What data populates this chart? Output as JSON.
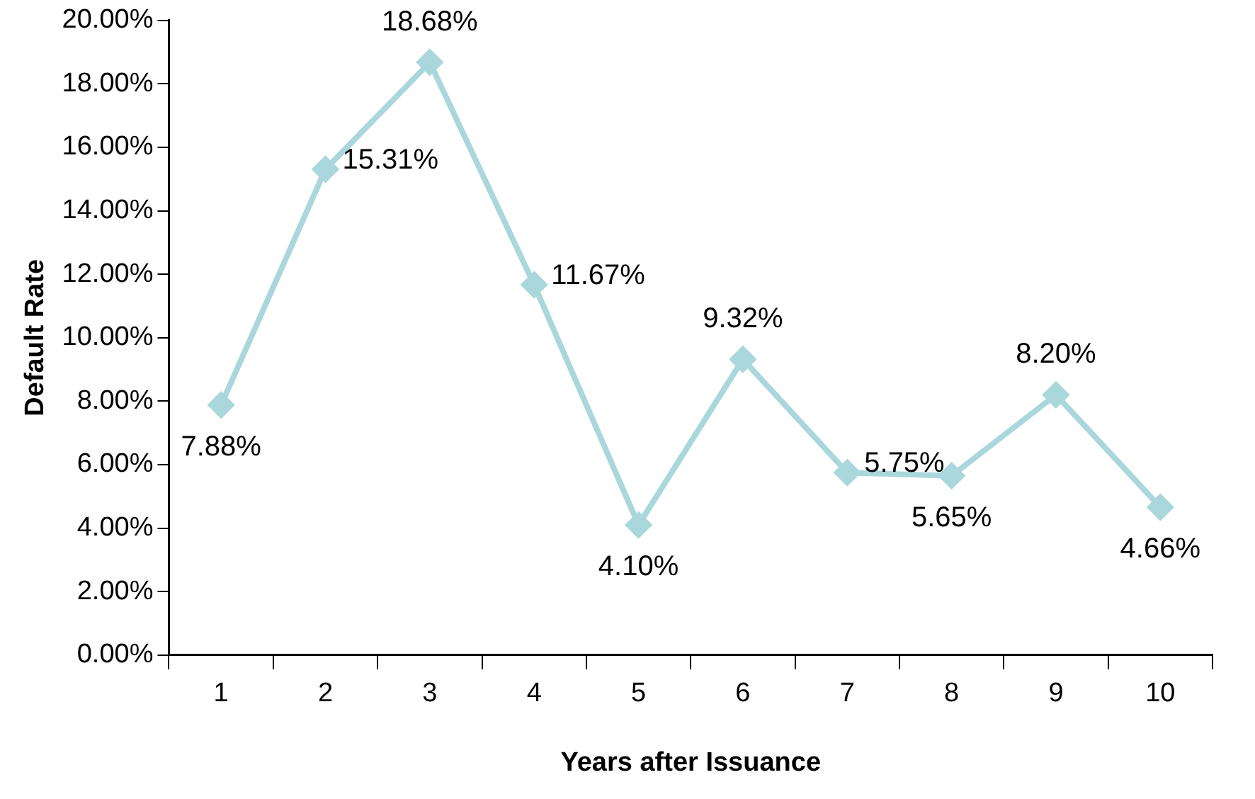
{
  "chart_data": {
    "type": "line",
    "xlabel": "Years after Issuance",
    "ylabel": "Default Rate",
    "categories": [
      "1",
      "2",
      "3",
      "4",
      "5",
      "6",
      "7",
      "8",
      "9",
      "10"
    ],
    "series": [
      {
        "color": "#a9d7db",
        "values": [
          7.88,
          15.31,
          18.68,
          11.67,
          4.1,
          9.32,
          5.75,
          5.65,
          8.2,
          4.66
        ],
        "value_labels": [
          "7.88%",
          "15.31%",
          "18.68%",
          "11.67%",
          "4.10%",
          "9.32%",
          "5.75%",
          "5.65%",
          "8.20%",
          "4.66%"
        ]
      }
    ],
    "ylim": [
      0,
      20
    ],
    "yticks": [
      {
        "value": 0,
        "label": "0.00%"
      },
      {
        "value": 2,
        "label": "2.00%"
      },
      {
        "value": 4,
        "label": "4.00%"
      },
      {
        "value": 6,
        "label": "6.00%"
      },
      {
        "value": 8,
        "label": "8.00%"
      },
      {
        "value": 10,
        "label": "10.00%"
      },
      {
        "value": 12,
        "label": "12.00%"
      },
      {
        "value": 14,
        "label": "14.00%"
      },
      {
        "value": 16,
        "label": "16.00%"
      },
      {
        "value": 18,
        "label": "18.00%"
      },
      {
        "value": 20,
        "label": "20.00%"
      }
    ],
    "grid": false,
    "legend": false,
    "marker": "diamond",
    "line_style": "solid"
  }
}
